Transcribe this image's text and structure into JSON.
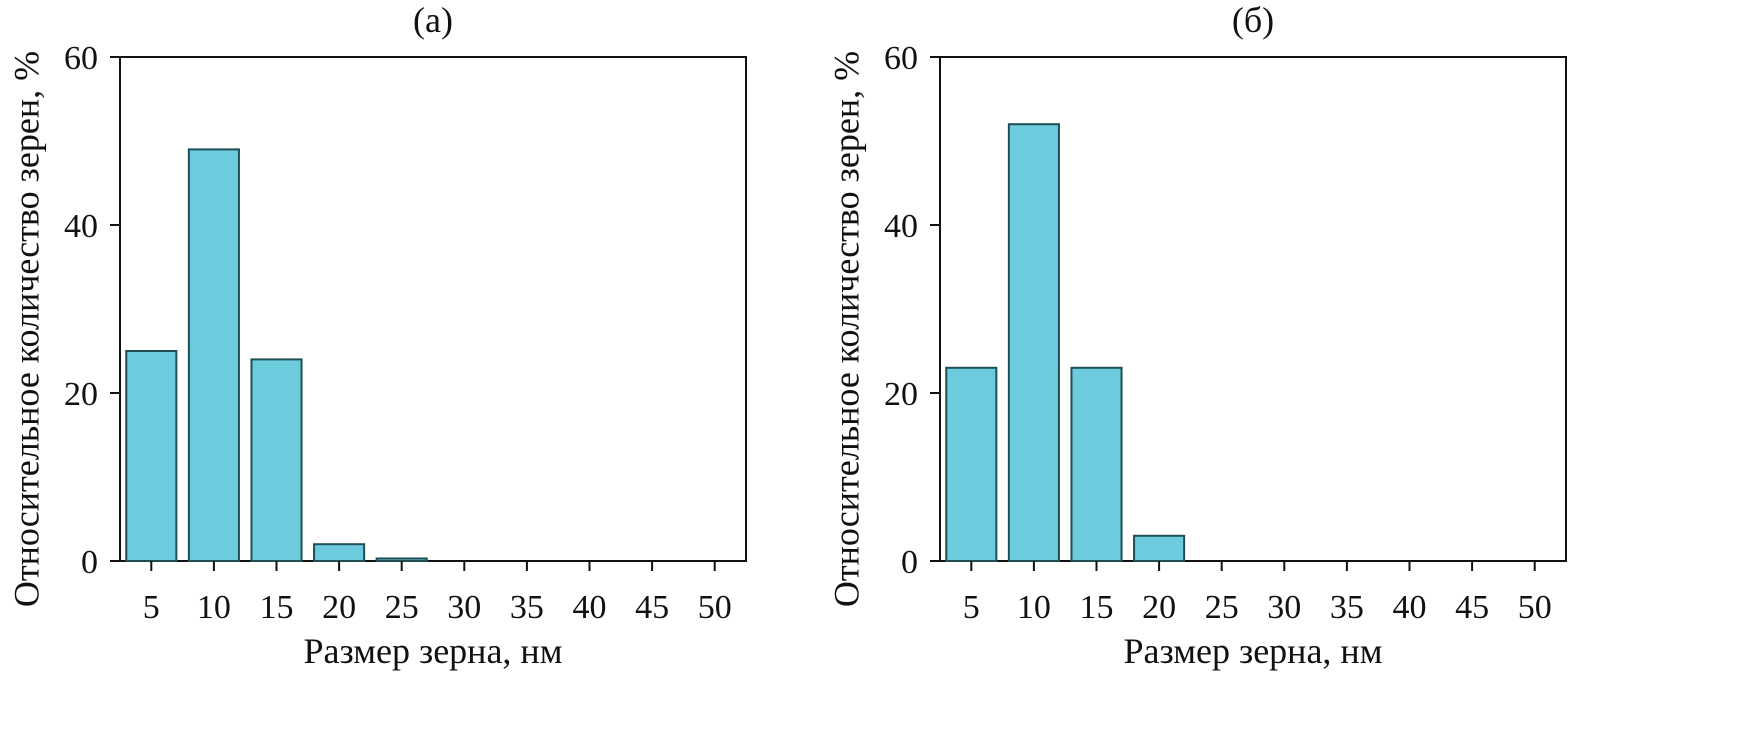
{
  "chart_data": [
    {
      "type": "bar",
      "title": "(а)",
      "xlabel": "Размер зерна, нм",
      "ylabel": "Относительное количество зерен, %",
      "categories": [
        "5",
        "10",
        "15",
        "20",
        "25",
        "30",
        "35",
        "40",
        "45",
        "50"
      ],
      "values": [
        25,
        49,
        24,
        2,
        0.3,
        0,
        0,
        0,
        0,
        0
      ],
      "ylim": [
        0,
        60
      ],
      "yticks": [
        "0",
        "20",
        "40",
        "60"
      ],
      "grid": false,
      "colors": {
        "bar_fill": "#6ccbdc",
        "bar_stroke": "#1f4f55",
        "axis": "#111111"
      }
    },
    {
      "type": "bar",
      "title": "(б)",
      "xlabel": "Размер зерна, нм",
      "ylabel": "Относительное количество зерен, %",
      "categories": [
        "5",
        "10",
        "15",
        "20",
        "25",
        "30",
        "35",
        "40",
        "45",
        "50"
      ],
      "values": [
        23,
        52,
        23,
        3,
        0,
        0,
        0,
        0,
        0,
        0
      ],
      "ylim": [
        0,
        60
      ],
      "yticks": [
        "0",
        "20",
        "40",
        "60"
      ],
      "grid": false,
      "colors": {
        "bar_fill": "#6ccbdc",
        "bar_stroke": "#1f4f55",
        "axis": "#111111"
      }
    }
  ]
}
